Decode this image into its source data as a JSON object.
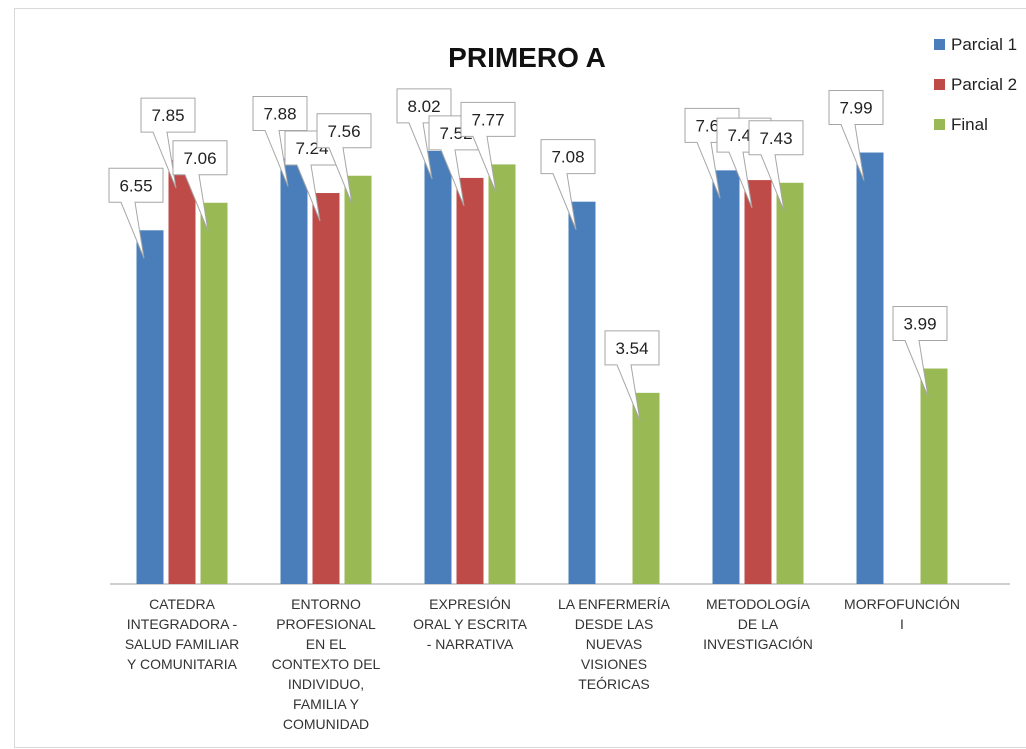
{
  "chart_data": {
    "type": "bar",
    "title": "PRIMERO A",
    "xlabel": "",
    "ylabel": "",
    "ylim": [
      0,
      10
    ],
    "grid": false,
    "legend_position": "top-right",
    "categories": [
      [
        "CATEDRA",
        "INTEGRADORA -",
        "SALUD FAMILIAR",
        "Y COMUNITARIA"
      ],
      [
        "ENTORNO",
        "PROFESIONAL",
        "EN EL",
        "CONTEXTO DEL",
        "INDIVIDUO,",
        "FAMILIA Y",
        "COMUNIDAD"
      ],
      [
        "EXPRESIÓN",
        "ORAL Y ESCRITA",
        "- NARRATIVA"
      ],
      [
        "LA ENFERMERÍA",
        "DESDE LAS",
        "NUEVAS",
        "VISIONES",
        "TEÓRICAS"
      ],
      [
        "METODOLOGÍA",
        "DE LA",
        "INVESTIGACIÓN"
      ],
      [
        "MORFOFUNCIÓN",
        "I"
      ]
    ],
    "series": [
      {
        "name": "Parcial 1",
        "color": "#4a7ebb",
        "values": [
          6.55,
          7.88,
          8.02,
          7.08,
          7.66,
          7.99
        ]
      },
      {
        "name": "Parcial 2",
        "color": "#be4b48",
        "values": [
          7.85,
          7.24,
          7.52,
          null,
          7.48,
          null
        ]
      },
      {
        "name": "Final",
        "color": "#98b954",
        "values": [
          7.06,
          7.56,
          7.77,
          3.54,
          7.43,
          3.99
        ]
      }
    ]
  }
}
